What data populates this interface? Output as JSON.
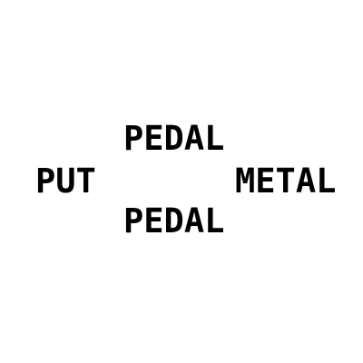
{
  "puzzle": {
    "top": "PEDAL",
    "left": "PUT",
    "right": "METAL",
    "bottom": "PEDAL"
  },
  "colors": {
    "background": "#ffffff",
    "text": "#000000"
  }
}
